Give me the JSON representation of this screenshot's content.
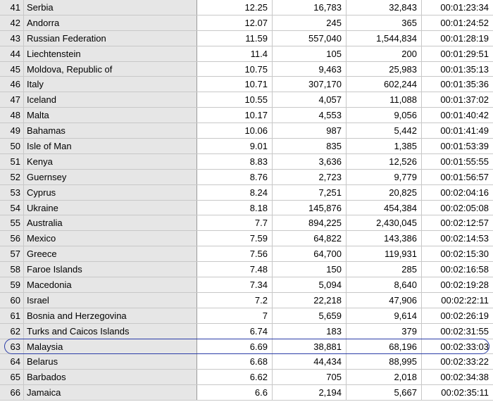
{
  "highlight_row": 22,
  "rows": [
    {
      "num": "41",
      "country": "Serbia",
      "rate": "12.25",
      "a": "16,783",
      "b": "32,843",
      "time": "00:01:23:34"
    },
    {
      "num": "42",
      "country": "Andorra",
      "rate": "12.07",
      "a": "245",
      "b": "365",
      "time": "00:01:24:52"
    },
    {
      "num": "43",
      "country": "Russian Federation",
      "rate": "11.59",
      "a": "557,040",
      "b": "1,544,834",
      "time": "00:01:28:19"
    },
    {
      "num": "44",
      "country": "Liechtenstein",
      "rate": "11.4",
      "a": "105",
      "b": "200",
      "time": "00:01:29:51"
    },
    {
      "num": "45",
      "country": "Moldova, Republic of",
      "rate": "10.75",
      "a": "9,463",
      "b": "25,983",
      "time": "00:01:35:13"
    },
    {
      "num": "46",
      "country": "Italy",
      "rate": "10.71",
      "a": "307,170",
      "b": "602,244",
      "time": "00:01:35:36"
    },
    {
      "num": "47",
      "country": "Iceland",
      "rate": "10.55",
      "a": "4,057",
      "b": "11,088",
      "time": "00:01:37:02"
    },
    {
      "num": "48",
      "country": "Malta",
      "rate": "10.17",
      "a": "4,553",
      "b": "9,056",
      "time": "00:01:40:42"
    },
    {
      "num": "49",
      "country": "Bahamas",
      "rate": "10.06",
      "a": "987",
      "b": "5,442",
      "time": "00:01:41:49"
    },
    {
      "num": "50",
      "country": "Isle of Man",
      "rate": "9.01",
      "a": "835",
      "b": "1,385",
      "time": "00:01:53:39"
    },
    {
      "num": "51",
      "country": "Kenya",
      "rate": "8.83",
      "a": "3,636",
      "b": "12,526",
      "time": "00:01:55:55"
    },
    {
      "num": "52",
      "country": "Guernsey",
      "rate": "8.76",
      "a": "2,723",
      "b": "9,779",
      "time": "00:01:56:57"
    },
    {
      "num": "53",
      "country": "Cyprus",
      "rate": "8.24",
      "a": "7,251",
      "b": "20,825",
      "time": "00:02:04:16"
    },
    {
      "num": "54",
      "country": "Ukraine",
      "rate": "8.18",
      "a": "145,876",
      "b": "454,384",
      "time": "00:02:05:08"
    },
    {
      "num": "55",
      "country": "Australia",
      "rate": "7.7",
      "a": "894,225",
      "b": "2,430,045",
      "time": "00:02:12:57"
    },
    {
      "num": "56",
      "country": "Mexico",
      "rate": "7.59",
      "a": "64,822",
      "b": "143,386",
      "time": "00:02:14:53"
    },
    {
      "num": "57",
      "country": "Greece",
      "rate": "7.56",
      "a": "64,700",
      "b": "119,931",
      "time": "00:02:15:30"
    },
    {
      "num": "58",
      "country": "Faroe Islands",
      "rate": "7.48",
      "a": "150",
      "b": "285",
      "time": "00:02:16:58"
    },
    {
      "num": "59",
      "country": "Macedonia",
      "rate": "7.34",
      "a": "5,094",
      "b": "8,640",
      "time": "00:02:19:28"
    },
    {
      "num": "60",
      "country": "Israel",
      "rate": "7.2",
      "a": "22,218",
      "b": "47,906",
      "time": "00:02:22:11"
    },
    {
      "num": "61",
      "country": "Bosnia and Herzegovina",
      "rate": "7",
      "a": "5,659",
      "b": "9,614",
      "time": "00:02:26:19"
    },
    {
      "num": "62",
      "country": "Turks and Caicos Islands",
      "rate": "6.74",
      "a": "183",
      "b": "379",
      "time": "00:02:31:55"
    },
    {
      "num": "63",
      "country": "Malaysia",
      "rate": "6.69",
      "a": "38,881",
      "b": "68,196",
      "time": "00:02:33:03"
    },
    {
      "num": "64",
      "country": "Belarus",
      "rate": "6.68",
      "a": "44,434",
      "b": "88,995",
      "time": "00:02:33:22"
    },
    {
      "num": "65",
      "country": "Barbados",
      "rate": "6.62",
      "a": "705",
      "b": "2,018",
      "time": "00:02:34:38"
    },
    {
      "num": "66",
      "country": "Jamaica",
      "rate": "6.6",
      "a": "2,194",
      "b": "5,667",
      "time": "00:02:35:11"
    }
  ]
}
